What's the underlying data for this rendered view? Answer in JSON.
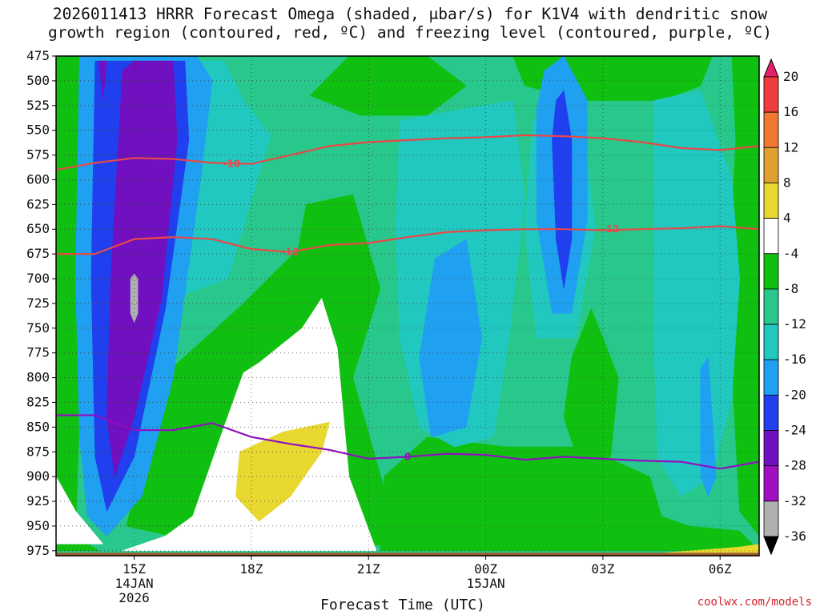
{
  "title_line1": "2026011413 HRRR Forecast Omega (shaded, μbar/s) for K1V4 with dendritic snow",
  "title_line2": "growth region (contoured, red, ºC) and freezing level (contoured, purple, ºC)",
  "credit": "coolwx.com/models",
  "chart_data": {
    "type": "heatmap",
    "xlabel": "Forecast Time (UTC)",
    "ylabel": "",
    "y_ticks": [
      475,
      500,
      525,
      550,
      575,
      600,
      625,
      650,
      675,
      700,
      725,
      750,
      775,
      800,
      825,
      850,
      875,
      900,
      925,
      950,
      975
    ],
    "x_ticks": [
      {
        "label": "15Z",
        "sub1": "14JAN",
        "sub2": "2026",
        "hour": 15
      },
      {
        "label": "18Z",
        "sub1": "",
        "sub2": "",
        "hour": 18
      },
      {
        "label": "21Z",
        "sub1": "",
        "sub2": "",
        "hour": 21
      },
      {
        "label": "00Z",
        "sub1": "15JAN",
        "sub2": "",
        "hour": 24
      },
      {
        "label": "03Z",
        "sub1": "",
        "sub2": "",
        "hour": 27
      },
      {
        "label": "06Z",
        "sub1": "",
        "sub2": "",
        "hour": 30
      }
    ],
    "xlim_hours": [
      13,
      31
    ],
    "ylim_hPa": [
      475,
      980
    ],
    "colorbar": {
      "ticks": [
        20,
        16,
        12,
        8,
        4,
        -4,
        -8,
        -12,
        -16,
        -20,
        -24,
        -28,
        -32,
        -36
      ],
      "colors": [
        "#e8206c",
        "#f03c3c",
        "#f07830",
        "#e0a030",
        "#e8d830",
        "#ffffff",
        "#10c010",
        "#28c88c",
        "#20c8c0",
        "#20a0f0",
        "#2040f0",
        "#7010c0",
        "#a010c0",
        "#b0b0b0",
        "#000000"
      ]
    },
    "shaded_regions": [
      {
        "level": -8,
        "color": "#10c010"
      },
      {
        "level": -12,
        "color": "#28c88c"
      },
      {
        "level": -16,
        "color": "#20c8c0"
      },
      {
        "level": -20,
        "color": "#20a0f0"
      },
      {
        "level": -24,
        "color": "#2040f0"
      },
      {
        "level": -28,
        "color": "#7010c0"
      },
      {
        "level": 4,
        "color": "#ffffff"
      },
      {
        "level": 8,
        "color": "#e8d830"
      }
    ],
    "contours": [
      {
        "name": "-10",
        "color": "#e84848",
        "label": "-10",
        "points": [
          [
            13,
            590
          ],
          [
            14,
            583
          ],
          [
            15,
            578
          ],
          [
            16,
            579
          ],
          [
            17,
            583
          ],
          [
            18,
            584
          ],
          [
            19,
            575
          ],
          [
            20,
            566
          ],
          [
            21,
            562
          ],
          [
            22,
            560
          ],
          [
            23,
            558
          ],
          [
            24,
            557
          ],
          [
            25,
            555
          ],
          [
            26,
            556
          ],
          [
            27,
            558
          ],
          [
            28,
            562
          ],
          [
            29,
            568
          ],
          [
            30,
            570
          ],
          [
            31,
            566
          ]
        ]
      },
      {
        "name": "-12",
        "color": "#e84848",
        "label": "-12",
        "points": [
          [
            13,
            675
          ],
          [
            14,
            675
          ],
          [
            15,
            660
          ],
          [
            16,
            658
          ],
          [
            17,
            660
          ],
          [
            18,
            670
          ],
          [
            19,
            673
          ],
          [
            20,
            666
          ],
          [
            21,
            664
          ],
          [
            22,
            658
          ],
          [
            23,
            653
          ],
          [
            24,
            651
          ],
          [
            25,
            650
          ],
          [
            26,
            650
          ],
          [
            27,
            651
          ],
          [
            28,
            650
          ],
          [
            29,
            649
          ],
          [
            30,
            647
          ],
          [
            31,
            650
          ]
        ]
      },
      {
        "name": "0",
        "color": "#9010c0",
        "label": "0",
        "points": [
          [
            13,
            838
          ],
          [
            14,
            838
          ],
          [
            15,
            853
          ],
          [
            16,
            853
          ],
          [
            17,
            846
          ],
          [
            18,
            860
          ],
          [
            19,
            867
          ],
          [
            20,
            873
          ],
          [
            21,
            882
          ],
          [
            22,
            880
          ],
          [
            23,
            877
          ],
          [
            24,
            878
          ],
          [
            25,
            883
          ],
          [
            26,
            880
          ],
          [
            27,
            882
          ],
          [
            28,
            884
          ],
          [
            29,
            885
          ],
          [
            30,
            892
          ],
          [
            31,
            885
          ]
        ]
      }
    ],
    "ground_level_hPa": 977
  }
}
